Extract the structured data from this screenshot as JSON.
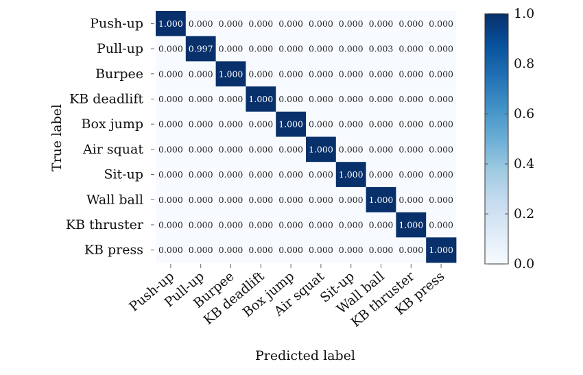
{
  "chart_data": {
    "type": "heatmap",
    "title": "",
    "xlabel": "Predicted label",
    "ylabel": "True label",
    "categories": [
      "Push-up",
      "Pull-up",
      "Burpee",
      "KB deadlift",
      "Box jump",
      "Air squat",
      "Sit-up",
      "Wall ball",
      "KB thruster",
      "KB press"
    ],
    "matrix": [
      [
        "1.000",
        "0.000",
        "0.000",
        "0.000",
        "0.000",
        "0.000",
        "0.000",
        "0.000",
        "0.000",
        "0.000"
      ],
      [
        "0.000",
        "0.997",
        "0.000",
        "0.000",
        "0.000",
        "0.000",
        "0.000",
        "0.003",
        "0.000",
        "0.000"
      ],
      [
        "0.000",
        "0.000",
        "1.000",
        "0.000",
        "0.000",
        "0.000",
        "0.000",
        "0.000",
        "0.000",
        "0.000"
      ],
      [
        "0.000",
        "0.000",
        "0.000",
        "1.000",
        "0.000",
        "0.000",
        "0.000",
        "0.000",
        "0.000",
        "0.000"
      ],
      [
        "0.000",
        "0.000",
        "0.000",
        "0.000",
        "1.000",
        "0.000",
        "0.000",
        "0.000",
        "0.000",
        "0.000"
      ],
      [
        "0.000",
        "0.000",
        "0.000",
        "0.000",
        "0.000",
        "1.000",
        "0.000",
        "0.000",
        "0.000",
        "0.000"
      ],
      [
        "0.000",
        "0.000",
        "0.000",
        "0.000",
        "0.000",
        "0.000",
        "1.000",
        "0.000",
        "0.000",
        "0.000"
      ],
      [
        "0.000",
        "0.000",
        "0.000",
        "0.000",
        "0.000",
        "0.000",
        "0.000",
        "1.000",
        "0.000",
        "0.000"
      ],
      [
        "0.000",
        "0.000",
        "0.000",
        "0.000",
        "0.000",
        "0.000",
        "0.000",
        "0.000",
        "1.000",
        "0.000"
      ],
      [
        "0.000",
        "0.000",
        "0.000",
        "0.000",
        "0.000",
        "0.000",
        "0.000",
        "0.000",
        "0.000",
        "1.000"
      ]
    ],
    "colorbar": {
      "range": [
        0.0,
        1.0
      ],
      "ticks": [
        "0.0",
        "0.2",
        "0.4",
        "0.6",
        "0.8",
        "1.0"
      ],
      "colormap": "Blues",
      "low_color": "#f7fbff",
      "high_color": "#08306b"
    }
  }
}
